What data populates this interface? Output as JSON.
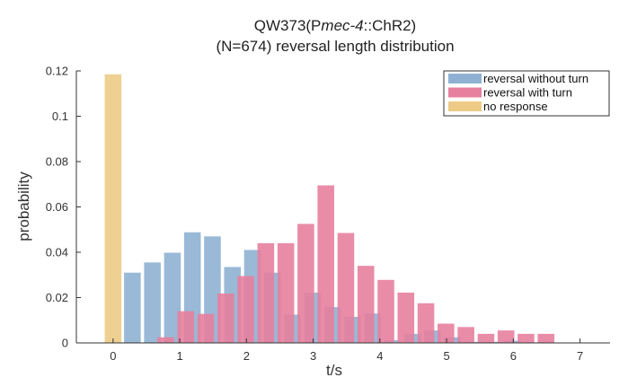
{
  "chart_data": {
    "type": "bar",
    "title": {
      "line1_prefix": "QW373(P",
      "line1_italic": "mec-4",
      "line1_suffix": "::ChR2)",
      "line2": "(N=674) reversal length distribution"
    },
    "xlabel": "t/s",
    "ylabel": "probability",
    "xlim": [
      -0.55,
      7.45
    ],
    "ylim": [
      0,
      0.12
    ],
    "xticks": [
      "0",
      "1",
      "2",
      "3",
      "4",
      "5",
      "6",
      "7"
    ],
    "xtick_values": [
      0,
      1,
      2,
      3,
      4,
      5,
      6,
      7
    ],
    "yticks": [
      "0",
      "0.02",
      "0.04",
      "0.06",
      "0.08",
      "0.1",
      "0.12"
    ],
    "ytick_values": [
      0,
      0.02,
      0.04,
      0.06,
      0.08,
      0.1,
      0.12
    ],
    "grid": false,
    "legend_position": "top-right",
    "series": [
      {
        "name": "reversal without turn",
        "color": "#8eb1d3",
        "bin_width": 0.25,
        "x": [
          0.29,
          0.59,
          0.89,
          1.19,
          1.49,
          1.79,
          2.09,
          2.39,
          2.69,
          2.99,
          3.29,
          3.59,
          3.89,
          4.19,
          4.49,
          4.79,
          5.09,
          5.39,
          5.69,
          5.99
        ],
        "values": [
          0.031,
          0.0355,
          0.0398,
          0.0488,
          0.047,
          0.0335,
          0.041,
          0.031,
          0.0125,
          0.0222,
          0.0158,
          0.0115,
          0.013,
          0.0012,
          0.004,
          0.0055,
          0.0025,
          0.0005,
          0.0005,
          0.001
        ]
      },
      {
        "name": "reversal with turn",
        "color": "#e7809e",
        "bin_width": 0.25,
        "x": [
          0.79,
          1.09,
          1.39,
          1.69,
          1.99,
          2.29,
          2.59,
          2.89,
          3.19,
          3.49,
          3.79,
          4.09,
          4.39,
          4.69,
          4.99,
          5.29,
          5.59,
          5.89,
          6.19,
          6.49
        ],
        "values": [
          0.0025,
          0.014,
          0.0128,
          0.0218,
          0.0295,
          0.044,
          0.044,
          0.0525,
          0.0695,
          0.0485,
          0.034,
          0.0278,
          0.0222,
          0.0175,
          0.0085,
          0.007,
          0.004,
          0.0055,
          0.004,
          0.004
        ]
      },
      {
        "name": "no response",
        "color": "#edcb87",
        "bin_width": 0.25,
        "x": [
          0.0
        ],
        "values": [
          0.1185
        ]
      }
    ]
  }
}
